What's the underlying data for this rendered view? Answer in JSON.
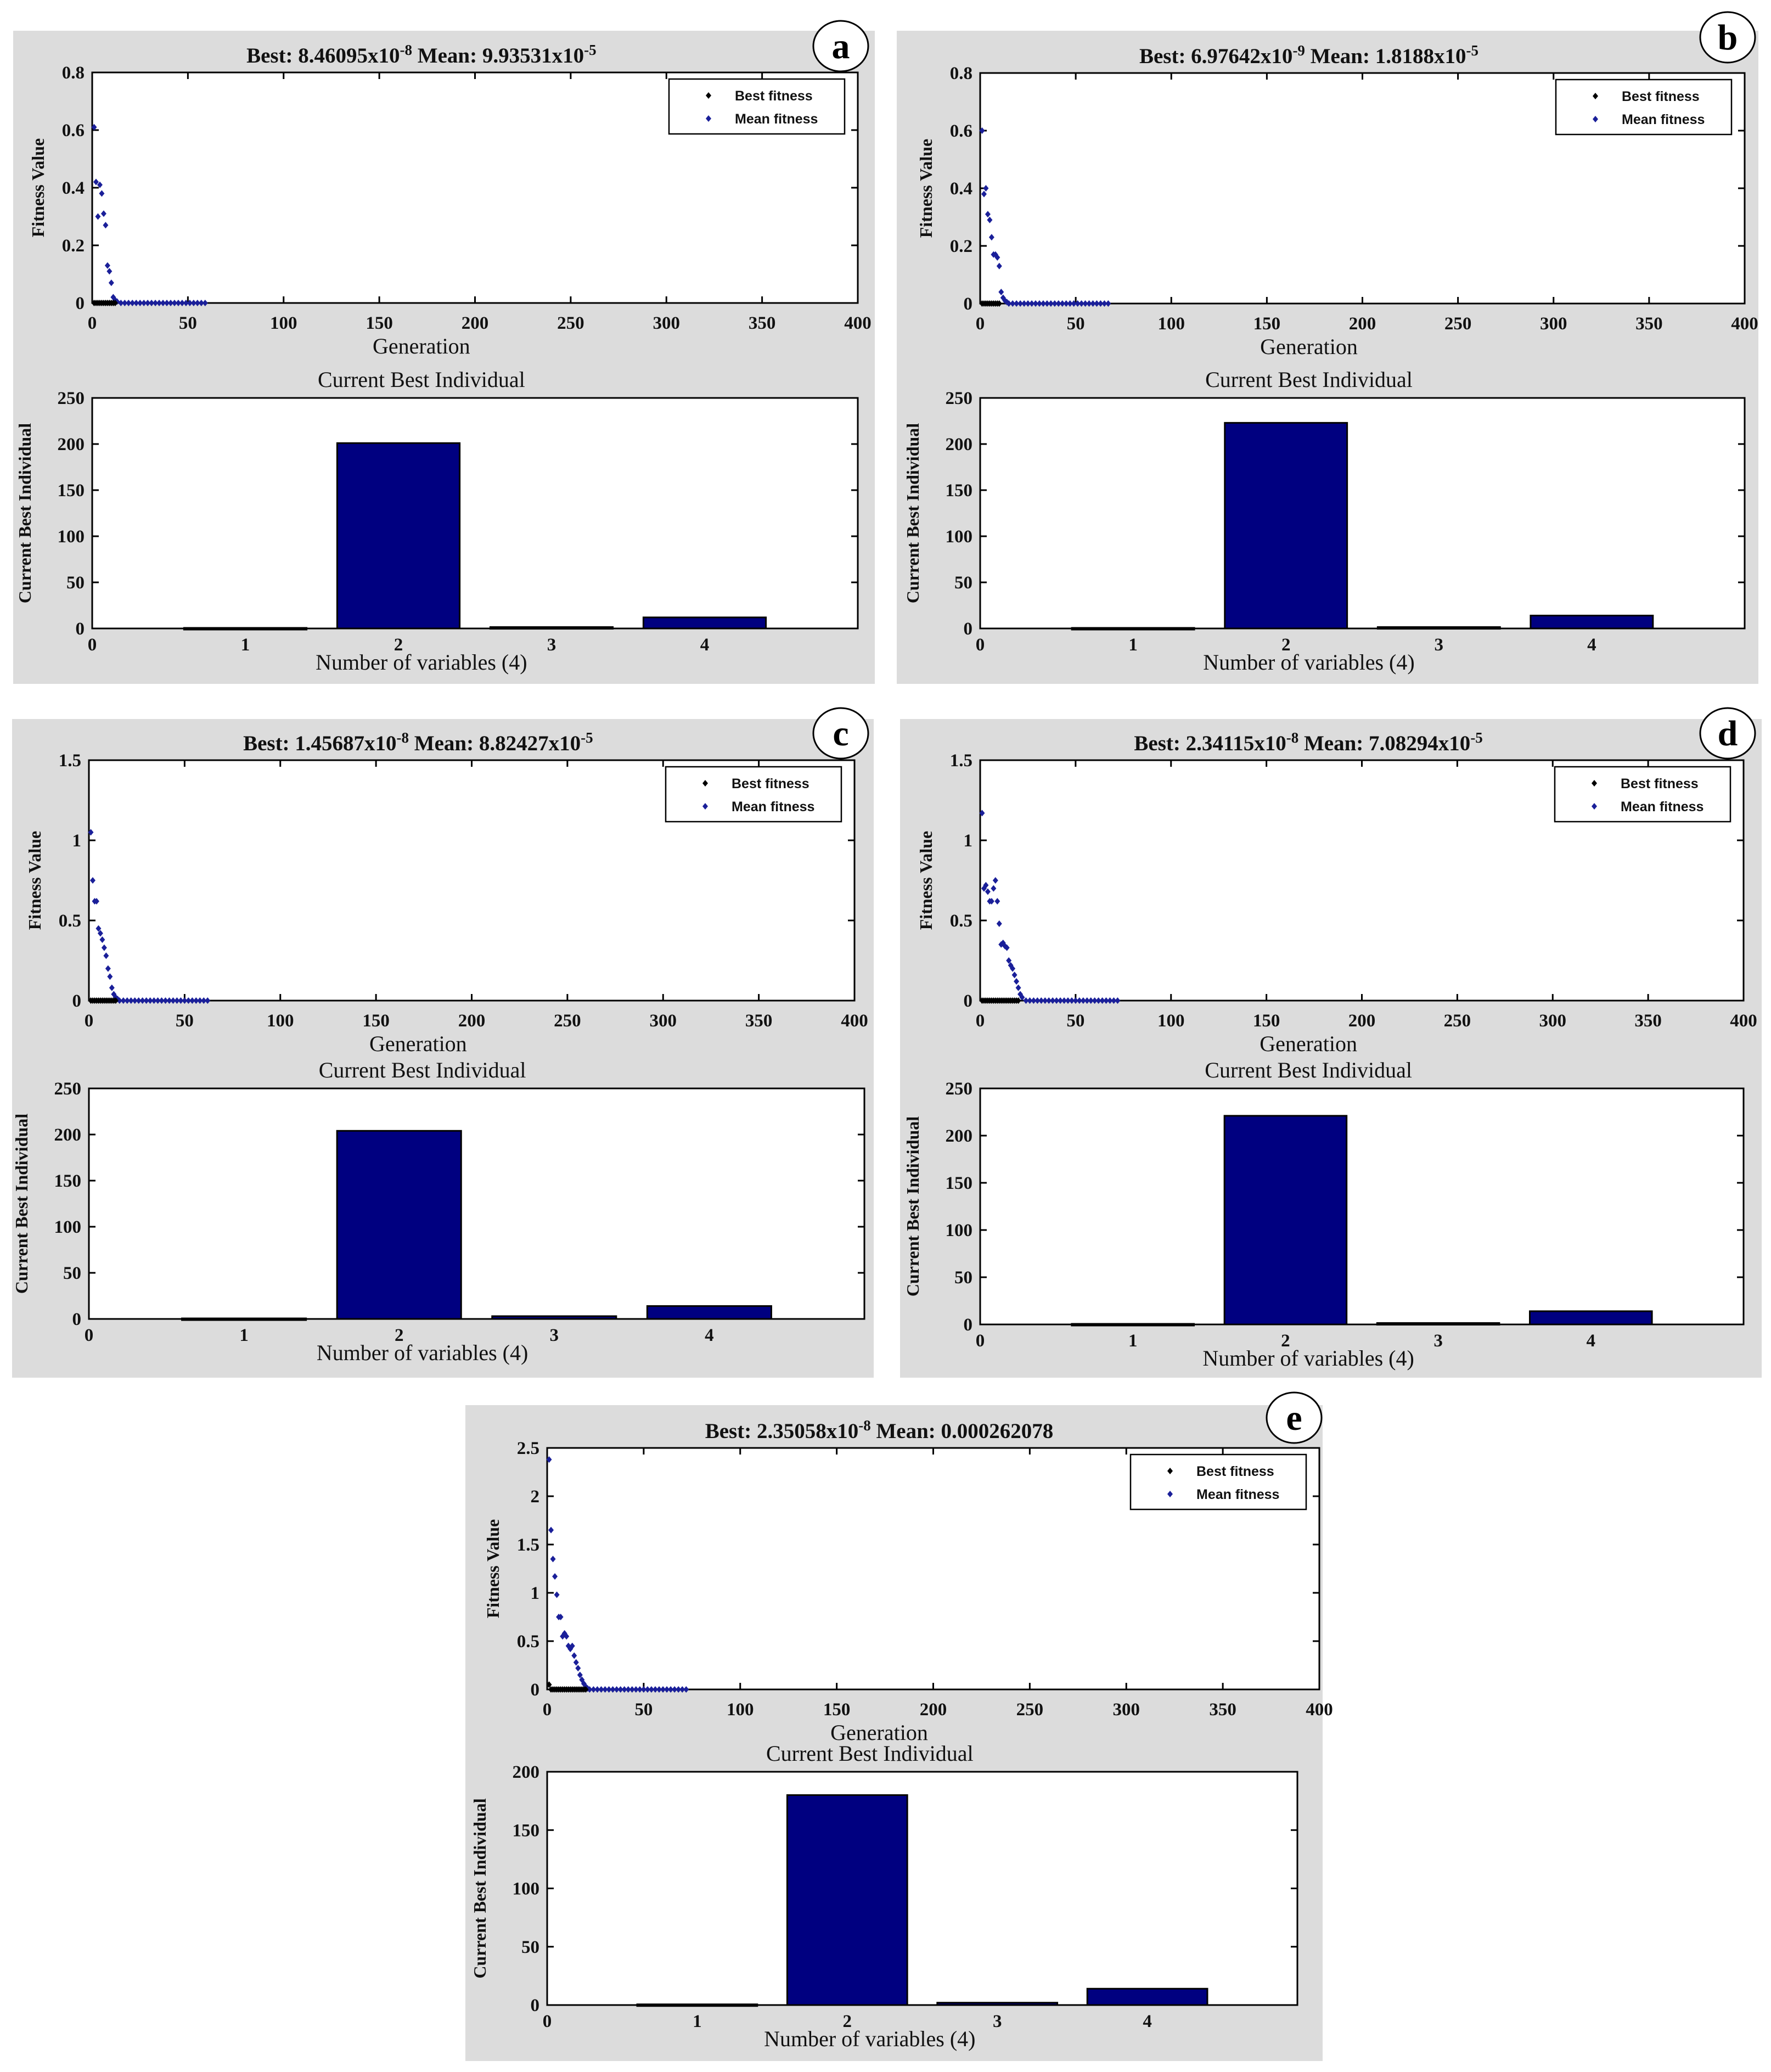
{
  "chart_data": [
    {
      "panel_id": "a",
      "title_best": "Best:  8.46095x10",
      "title_best_exp": "-8",
      "title_mean": "Mean: 9.93531x10",
      "title_mean_exp": "-5",
      "fitness": {
        "type": "scatter",
        "xlabel": "Generation",
        "ylabel": "Fitness Value",
        "xlim": [
          0,
          400
        ],
        "ylim": [
          0,
          0.8
        ],
        "xticks": [
          "0",
          "50",
          "100",
          "150",
          "200",
          "250",
          "300",
          "350",
          "400"
        ],
        "yticks": [
          "0",
          "0.2",
          "0.4",
          "0.6",
          "0.8"
        ],
        "legend": [
          "Best fitness",
          "Mean fitness"
        ],
        "legend_position": "top-right",
        "series": [
          {
            "name": "Best fitness",
            "color": "#000000",
            "x": [
              1,
              2,
              3,
              4,
              5,
              6,
              7,
              8,
              9,
              10,
              11,
              12
            ],
            "y": [
              0,
              0,
              0,
              0,
              0,
              0,
              0,
              0,
              0,
              0,
              0,
              0
            ]
          },
          {
            "name": "Mean fitness",
            "color": "#1a1f99",
            "x": [
              1,
              2,
              3,
              4,
              5,
              6,
              7,
              8,
              9,
              10,
              11,
              12,
              13,
              15,
              17,
              19,
              21,
              23,
              25,
              27,
              29,
              31,
              33,
              35,
              37,
              39,
              41,
              43,
              45,
              47,
              49,
              51,
              53,
              55,
              57,
              59
            ],
            "y": [
              0.61,
              0.42,
              0.3,
              0.41,
              0.38,
              0.31,
              0.27,
              0.13,
              0.11,
              0.07,
              0.02,
              0.01,
              0.005,
              0,
              0,
              0,
              0,
              0,
              0,
              0,
              0,
              0,
              0,
              0,
              0,
              0,
              0,
              0,
              0,
              0,
              0,
              0,
              0,
              0,
              0,
              0
            ]
          }
        ]
      },
      "individual": {
        "type": "bar",
        "title": "Current Best Individual",
        "xlabel": "Number of variables (4)",
        "ylabel": "Current Best Individual",
        "categories": [
          "1",
          "2",
          "3",
          "4"
        ],
        "values": [
          0.6,
          201,
          1.5,
          12
        ],
        "xlim": [
          0,
          5
        ],
        "ylim": [
          0,
          250
        ],
        "xticks": [
          "0",
          "1",
          "2",
          "3",
          "4"
        ],
        "yticks": [
          "0",
          "50",
          "100",
          "150",
          "200",
          "250"
        ],
        "bar_color": "#000080"
      }
    },
    {
      "panel_id": "b",
      "title_best": "Best:  6.97642x10",
      "title_best_exp": "-9",
      "title_mean": "Mean: 1.8188x10",
      "title_mean_exp": "-5",
      "fitness": {
        "type": "scatter",
        "xlabel": "Generation",
        "ylabel": "Fitness Value",
        "xlim": [
          0,
          400
        ],
        "ylim": [
          0,
          0.8
        ],
        "xticks": [
          "0",
          "50",
          "100",
          "150",
          "200",
          "250",
          "300",
          "350",
          "400"
        ],
        "yticks": [
          "0",
          "0.2",
          "0.4",
          "0.6",
          "0.8"
        ],
        "legend": [
          "Best fitness",
          "Mean fitness"
        ],
        "legend_position": "top-right",
        "series": [
          {
            "name": "Best fitness",
            "color": "#000000",
            "x": [
              1,
              2,
              3,
              4,
              5,
              6,
              7,
              8,
              9,
              10
            ],
            "y": [
              0,
              0,
              0,
              0,
              0,
              0,
              0,
              0,
              0,
              0
            ]
          },
          {
            "name": "Mean fitness",
            "color": "#1a1f99",
            "x": [
              1,
              2,
              3,
              4,
              5,
              6,
              7,
              8,
              9,
              10,
              11,
              12,
              13,
              14,
              15,
              17,
              19,
              21,
              23,
              25,
              27,
              29,
              31,
              33,
              35,
              37,
              39,
              41,
              43,
              45,
              47,
              49,
              51,
              53,
              55,
              57,
              59,
              61,
              63,
              65,
              67
            ],
            "y": [
              0.6,
              0.38,
              0.4,
              0.31,
              0.29,
              0.23,
              0.17,
              0.17,
              0.16,
              0.13,
              0.04,
              0.02,
              0.01,
              0.005,
              0,
              0,
              0,
              0,
              0,
              0,
              0,
              0,
              0,
              0,
              0,
              0,
              0,
              0,
              0,
              0,
              0,
              0,
              0,
              0,
              0,
              0,
              0,
              0,
              0,
              0,
              0
            ]
          }
        ]
      },
      "individual": {
        "type": "bar",
        "title": "Current Best Individual",
        "xlabel": "Number of variables (4)",
        "ylabel": "Current Best Individual",
        "categories": [
          "1",
          "2",
          "3",
          "4"
        ],
        "values": [
          0.6,
          223,
          1.5,
          14
        ],
        "xlim": [
          0,
          5
        ],
        "ylim": [
          0,
          250
        ],
        "xticks": [
          "0",
          "1",
          "2",
          "3",
          "4"
        ],
        "yticks": [
          "0",
          "50",
          "100",
          "150",
          "200",
          "250"
        ],
        "bar_color": "#000080"
      }
    },
    {
      "panel_id": "c",
      "title_best": "Best:  1.45687x10",
      "title_best_exp": "-8",
      "title_mean": "Mean: 8.82427x10",
      "title_mean_exp": "-5",
      "fitness": {
        "type": "scatter",
        "xlabel": "Generation",
        "ylabel": "Fitness Value",
        "xlim": [
          0,
          400
        ],
        "ylim": [
          0,
          1.5
        ],
        "xticks": [
          "0",
          "50",
          "100",
          "150",
          "200",
          "250",
          "300",
          "350",
          "400"
        ],
        "yticks": [
          "0",
          "0.5",
          "1",
          "1.5"
        ],
        "legend": [
          "Best fitness",
          "Mean fitness"
        ],
        "legend_position": "top-right",
        "series": [
          {
            "name": "Best fitness",
            "color": "#000000",
            "x": [
              1,
              2,
              3,
              4,
              5,
              6,
              7,
              8,
              9,
              10,
              11,
              12,
              13,
              14
            ],
            "y": [
              0,
              0,
              0,
              0,
              0,
              0,
              0,
              0,
              0,
              0,
              0,
              0,
              0,
              0
            ]
          },
          {
            "name": "Mean fitness",
            "color": "#1a1f99",
            "x": [
              1,
              2,
              3,
              4,
              5,
              6,
              7,
              8,
              9,
              10,
              11,
              12,
              13,
              14,
              15,
              16,
              18,
              20,
              22,
              24,
              26,
              28,
              30,
              32,
              34,
              36,
              38,
              40,
              42,
              44,
              46,
              48,
              50,
              52,
              54,
              56,
              58,
              60,
              62
            ],
            "y": [
              1.05,
              0.75,
              0.62,
              0.62,
              0.45,
              0.42,
              0.38,
              0.33,
              0.28,
              0.2,
              0.15,
              0.08,
              0.04,
              0.02,
              0.01,
              0,
              0,
              0,
              0,
              0,
              0,
              0,
              0,
              0,
              0,
              0,
              0,
              0,
              0,
              0,
              0,
              0,
              0,
              0,
              0,
              0,
              0,
              0,
              0
            ]
          }
        ]
      },
      "individual": {
        "type": "bar",
        "title": "Current Best Individual",
        "xlabel": "Number of variables (4)",
        "ylabel": "Current Best Individual",
        "categories": [
          "1",
          "2",
          "3",
          "4"
        ],
        "values": [
          0.6,
          204,
          3,
          14
        ],
        "xlim": [
          0,
          5
        ],
        "ylim": [
          0,
          250
        ],
        "xticks": [
          "0",
          "1",
          "2",
          "3",
          "4"
        ],
        "yticks": [
          "0",
          "50",
          "100",
          "150",
          "200",
          "250"
        ],
        "bar_color": "#000080"
      }
    },
    {
      "panel_id": "d",
      "title_best": "Best:  2.34115x10",
      "title_best_exp": "-8",
      "title_mean": "Mean: 7.08294x10",
      "title_mean_exp": "-5",
      "fitness": {
        "type": "scatter",
        "xlabel": "Generation",
        "ylabel": "Fitness Value",
        "xlim": [
          0,
          400
        ],
        "ylim": [
          0,
          1.5
        ],
        "xticks": [
          "0",
          "50",
          "100",
          "150",
          "200",
          "250",
          "300",
          "350",
          "400"
        ],
        "yticks": [
          "0",
          "0.5",
          "1",
          "1.5"
        ],
        "legend": [
          "Best fitness",
          "Mean fitness"
        ],
        "legend_position": "top-right",
        "series": [
          {
            "name": "Best fitness",
            "color": "#000000",
            "x": [
              1,
              2,
              3,
              4,
              5,
              6,
              7,
              8,
              9,
              10,
              11,
              12,
              13,
              14,
              15,
              16,
              17,
              18,
              19,
              20
            ],
            "y": [
              0,
              0,
              0,
              0,
              0,
              0,
              0,
              0,
              0,
              0,
              0,
              0,
              0,
              0,
              0,
              0,
              0,
              0,
              0,
              0
            ]
          },
          {
            "name": "Mean fitness",
            "color": "#1a1f99",
            "x": [
              1,
              2,
              3,
              4,
              5,
              6,
              7,
              8,
              9,
              10,
              11,
              12,
              13,
              14,
              15,
              16,
              17,
              18,
              19,
              20,
              21,
              22,
              24,
              26,
              28,
              30,
              32,
              34,
              36,
              38,
              40,
              42,
              44,
              46,
              48,
              50,
              52,
              54,
              56,
              58,
              60,
              62,
              64,
              66,
              68,
              70,
              72
            ],
            "y": [
              1.17,
              0.7,
              0.72,
              0.68,
              0.62,
              0.62,
              0.7,
              0.75,
              0.62,
              0.48,
              0.35,
              0.36,
              0.34,
              0.33,
              0.25,
              0.22,
              0.2,
              0.16,
              0.12,
              0.08,
              0.04,
              0.02,
              0,
              0,
              0,
              0,
              0,
              0,
              0,
              0,
              0,
              0,
              0,
              0,
              0,
              0,
              0,
              0,
              0,
              0,
              0,
              0,
              0,
              0,
              0,
              0,
              0
            ]
          }
        ]
      },
      "individual": {
        "type": "bar",
        "title": "Current Best Individual",
        "xlabel": "Number of variables (4)",
        "ylabel": "Current Best Individual",
        "categories": [
          "1",
          "2",
          "3",
          "4"
        ],
        "values": [
          0.6,
          221,
          1.5,
          14
        ],
        "xlim": [
          0,
          5
        ],
        "ylim": [
          0,
          250
        ],
        "xticks": [
          "0",
          "1",
          "2",
          "3",
          "4"
        ],
        "yticks": [
          "0",
          "50",
          "100",
          "150",
          "200",
          "250"
        ],
        "bar_color": "#000080"
      }
    },
    {
      "panel_id": "e",
      "title_best": "Best:  2.35058x10",
      "title_best_exp": "-8",
      "title_mean": "Mean: 0.000262078",
      "title_mean_exp": "",
      "fitness": {
        "type": "scatter",
        "xlabel": "Generation",
        "ylabel": "Fitness Value",
        "xlim": [
          0,
          400
        ],
        "ylim": [
          0,
          2.5
        ],
        "xticks": [
          "0",
          "50",
          "100",
          "150",
          "200",
          "250",
          "300",
          "350",
          "400"
        ],
        "yticks": [
          "0",
          "0.5",
          "1",
          "1.5",
          "2",
          "2.5"
        ],
        "legend": [
          "Best fitness",
          "Mean fitness"
        ],
        "legend_position": "top-right",
        "series": [
          {
            "name": "Best fitness",
            "color": "#000000",
            "x": [
              1,
              2,
              3,
              4,
              5,
              6,
              7,
              8,
              9,
              10,
              11,
              12,
              13,
              14,
              15,
              16,
              17,
              18,
              19,
              20
            ],
            "y": [
              0.05,
              0,
              0,
              0,
              0,
              0,
              0,
              0,
              0,
              0,
              0,
              0,
              0,
              0,
              0,
              0,
              0,
              0,
              0,
              0
            ]
          },
          {
            "name": "Mean fitness",
            "color": "#1a1f99",
            "x": [
              1,
              2,
              3,
              4,
              5,
              6,
              7,
              8,
              9,
              10,
              11,
              12,
              13,
              14,
              15,
              16,
              17,
              18,
              19,
              20,
              21,
              22,
              24,
              26,
              28,
              30,
              32,
              34,
              36,
              38,
              40,
              42,
              44,
              46,
              48,
              50,
              52,
              54,
              56,
              58,
              60,
              62,
              64,
              66,
              68,
              70,
              72
            ],
            "y": [
              2.38,
              1.65,
              1.35,
              1.17,
              0.98,
              0.75,
              0.75,
              0.55,
              0.58,
              0.55,
              0.45,
              0.42,
              0.45,
              0.35,
              0.28,
              0.22,
              0.15,
              0.1,
              0.06,
              0.03,
              0.01,
              0,
              0,
              0,
              0,
              0,
              0,
              0,
              0,
              0,
              0,
              0,
              0,
              0,
              0,
              0,
              0,
              0,
              0,
              0,
              0,
              0,
              0,
              0,
              0,
              0,
              0
            ]
          }
        ]
      },
      "individual": {
        "type": "bar",
        "title": "Current Best Individual",
        "xlabel": "Number of variables (4)",
        "ylabel": "Current Best Individual",
        "categories": [
          "1",
          "2",
          "3",
          "4"
        ],
        "values": [
          0.6,
          180,
          2,
          14
        ],
        "xlim": [
          0,
          5
        ],
        "ylim": [
          0,
          200
        ],
        "xticks": [
          "0",
          "1",
          "2",
          "3",
          "4"
        ],
        "yticks": [
          "0",
          "50",
          "100",
          "150",
          "200"
        ],
        "bar_color": "#000080"
      }
    }
  ]
}
